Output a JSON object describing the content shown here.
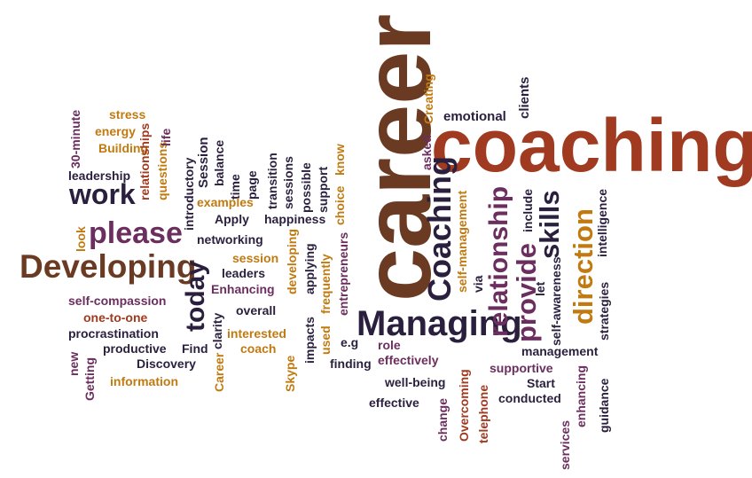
{
  "words": {
    "career": "career",
    "coaching": "coaching",
    "managing": "Managing",
    "developing_big": "Developing",
    "please": "please",
    "work": "work",
    "coaching_v": "Coaching",
    "relationship": "relationship",
    "provide": "provide",
    "skills": "skills",
    "direction": "direction",
    "today": "today",
    "emotional": "emotional",
    "clients": "clients",
    "creating": "Creating",
    "asked": "asked",
    "stress": "stress",
    "energy": "energy",
    "building": "Building",
    "min30": "30-minute",
    "leadership": "leadership",
    "relationships": "relationships",
    "questions": "questions",
    "life": "life",
    "introductory": "introductory",
    "session_v": "Session",
    "balance": "balance",
    "time": "time",
    "page": "page",
    "transition": "transition",
    "sessions": "sessions",
    "possible": "possible",
    "support": "support",
    "know": "know",
    "choice": "choice",
    "examples": "examples",
    "apply": "Apply",
    "happiness": "happiness",
    "look": "look",
    "networking": "networking",
    "session": "session",
    "leaders": "leaders",
    "enhancing_cap": "Enhancing",
    "developing_small": "developing",
    "applying": "applying",
    "frequently": "frequently",
    "entrepreneurs": "entrepreneurs",
    "self_management": "self-management",
    "via": "via",
    "include": "include",
    "let": "let",
    "self_awareness": "self-awareness",
    "intelligence": "intelligence",
    "strategies": "strategies",
    "self_compassion": "self-compassion",
    "clarity": "clarity",
    "overall": "overall",
    "one_to_one": "one-to-one",
    "procrastination": "procrastination",
    "impacts": "impacts",
    "used": "used",
    "interested": "interested",
    "productive": "productive",
    "find": "Find",
    "eg": "e.g",
    "role": "role",
    "new": "new",
    "coach": "coach",
    "career_small": "Career",
    "discovery": "Discovery",
    "finding": "finding",
    "effectively": "effectively",
    "getting": "Getting",
    "information": "information",
    "skype": "Skype",
    "management": "management",
    "supportive": "supportive",
    "start": "Start",
    "well_being": "well-being",
    "overcoming": "Overcoming",
    "conducted": "conducted",
    "guidance": "guidance",
    "enhancing": "enhancing",
    "effective": "effective",
    "change": "change",
    "telephone": "telephone",
    "services": "services"
  }
}
